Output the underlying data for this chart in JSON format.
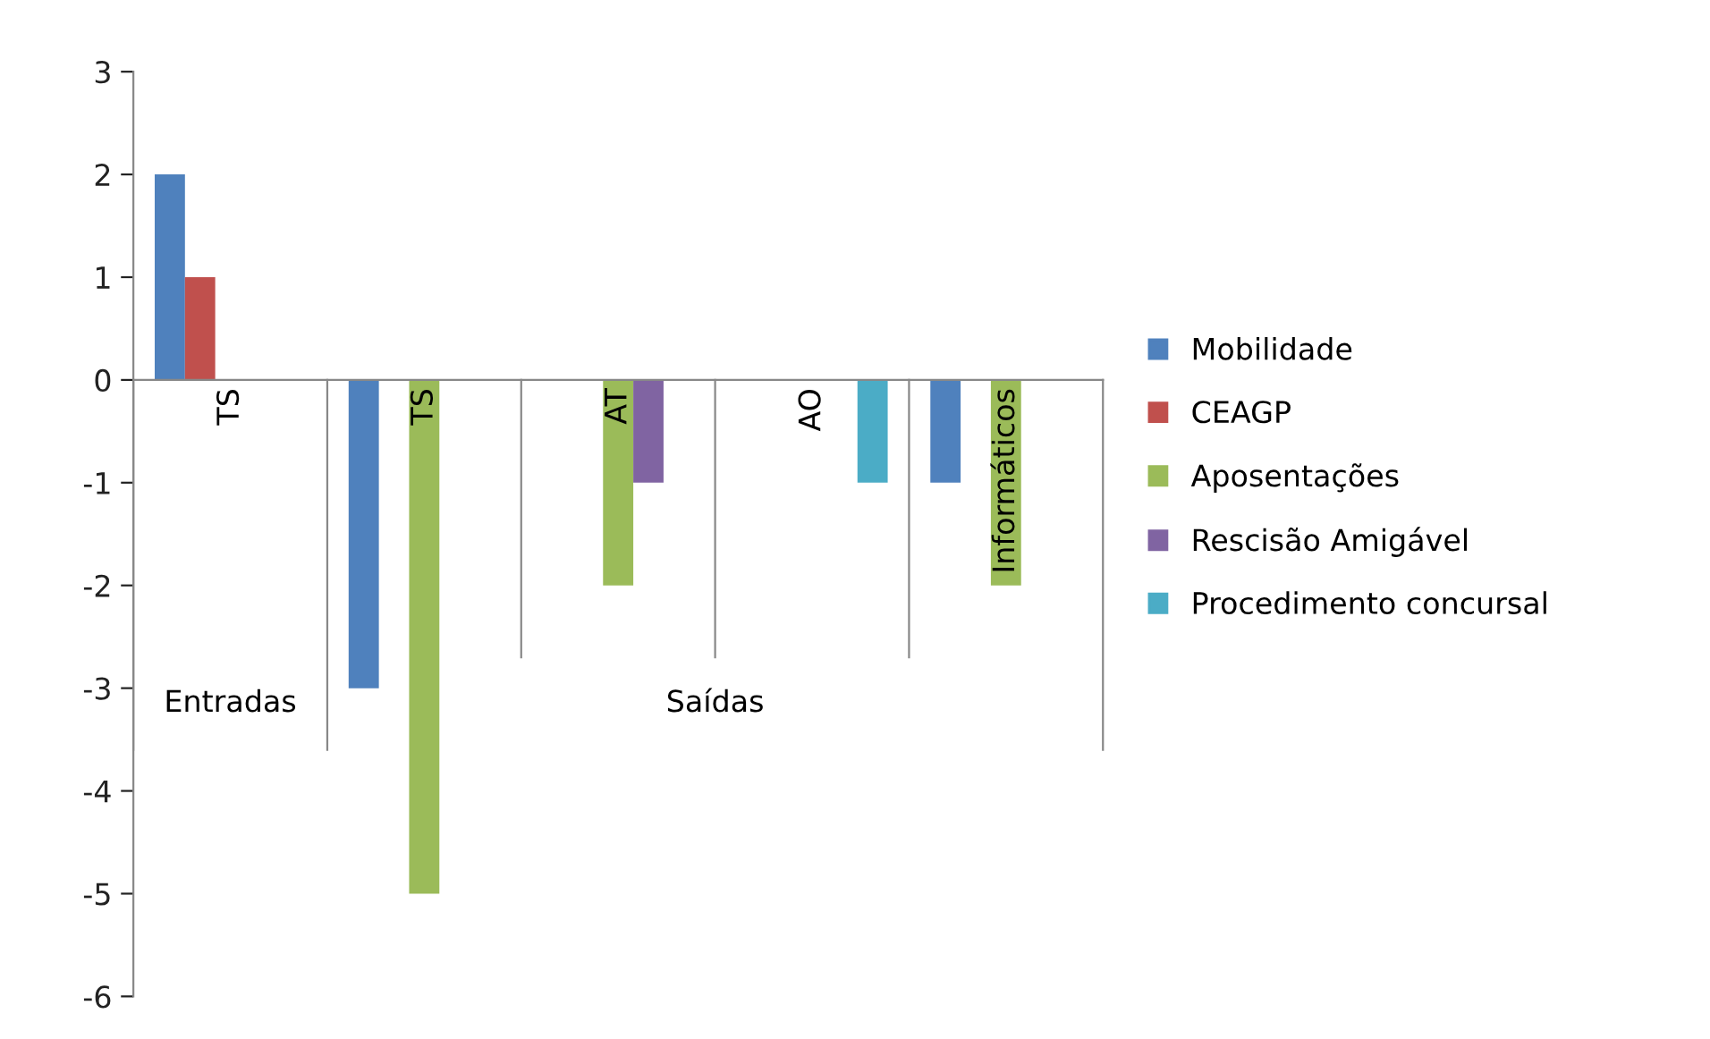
{
  "chart_data": {
    "type": "bar",
    "categories": [
      "TS",
      "TS",
      "AT",
      "AO",
      "Informáticos"
    ],
    "series": [
      {
        "name": "Mobilidade",
        "color": "#4f81bd",
        "values": [
          2,
          -3,
          null,
          null,
          -1
        ]
      },
      {
        "name": "CEAGP",
        "color": "#c0504d",
        "values": [
          1,
          null,
          null,
          null,
          null
        ]
      },
      {
        "name": "Aposentações",
        "color": "#9bbb59",
        "values": [
          null,
          -5,
          -2,
          null,
          -2
        ]
      },
      {
        "name": "Rescisão Amigável",
        "color": "#8064a2",
        "values": [
          null,
          null,
          -1,
          null,
          null
        ]
      },
      {
        "name": "Procedimento concursal",
        "color": "#4bacc6",
        "values": [
          null,
          null,
          null,
          -1,
          null
        ]
      }
    ],
    "annotations": [
      "Entradas",
      "Saídas"
    ],
    "ylim": [
      -6,
      3
    ],
    "yticks": [
      -6,
      -5,
      -4,
      -3,
      -2,
      -1,
      0,
      1,
      2,
      3
    ],
    "grid": false,
    "legend": "right"
  }
}
